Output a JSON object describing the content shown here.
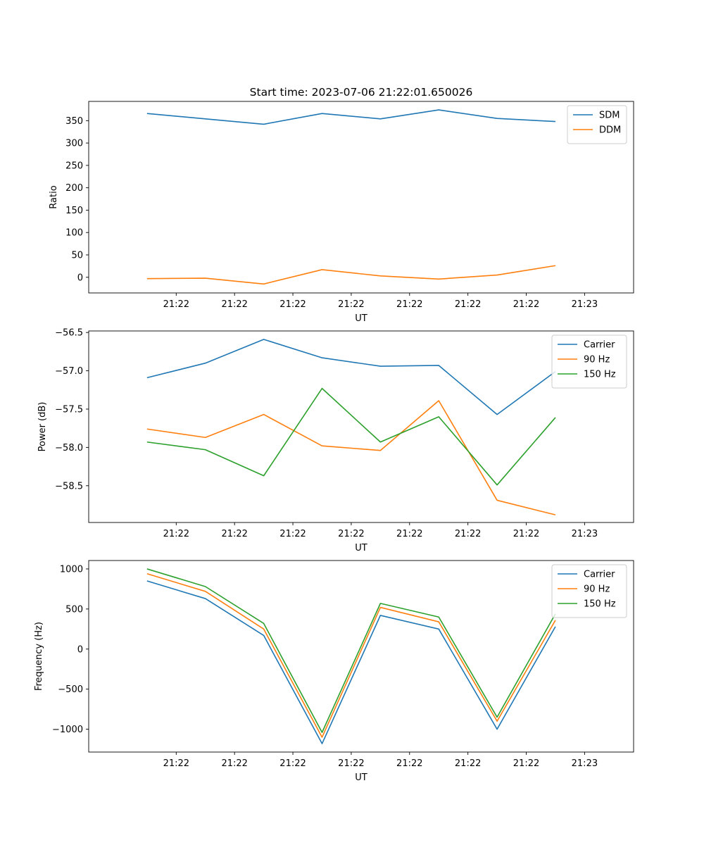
{
  "chart_data": [
    {
      "type": "line",
      "title": "Start time: 2023-07-06 21:22:01.650026",
      "xlabel": "UT",
      "ylabel": "Ratio",
      "xlim": [
        0,
        9.34
      ],
      "ylim": [
        -35,
        393
      ],
      "x": [
        1,
        2,
        3,
        4,
        5,
        6,
        7,
        8
      ],
      "x_tick_labels": [
        "21:22",
        "21:22",
        "21:22",
        "21:22",
        "21:22",
        "21:22",
        "21:22"
      ],
      "x_last_tick_label": "21:23",
      "yticks": [
        0,
        50,
        100,
        150,
        200,
        250,
        300,
        350
      ],
      "legend": "top-right",
      "series": [
        {
          "name": "SDM",
          "color": "#1f77b4",
          "values": [
            366,
            354,
            342,
            366,
            354,
            374,
            355,
            348
          ]
        },
        {
          "name": "DDM",
          "color": "#ff7f0e",
          "values": [
            -3,
            -2,
            -15,
            17,
            3,
            -4,
            5,
            26
          ]
        }
      ]
    },
    {
      "type": "line",
      "title": "",
      "xlabel": "UT",
      "ylabel": "Power (dB)",
      "xlim": [
        0,
        9.34
      ],
      "ylim": [
        -58.98,
        -56.48
      ],
      "x": [
        1,
        2,
        3,
        4,
        5,
        6,
        7,
        8
      ],
      "x_tick_labels": [
        "21:22",
        "21:22",
        "21:22",
        "21:22",
        "21:22",
        "21:22",
        "21:22"
      ],
      "x_last_tick_label": "21:23",
      "yticks": [
        -58.5,
        -58.0,
        -57.5,
        -57.0,
        -56.5
      ],
      "ytick_labels": [
        "−58.5",
        "−58.0",
        "−57.5",
        "−57.0",
        "−56.5"
      ],
      "legend": "top-right",
      "series": [
        {
          "name": "Carrier",
          "color": "#1f77b4",
          "values": [
            -57.09,
            -56.9,
            -56.59,
            -56.83,
            -56.94,
            -56.93,
            -57.57,
            -57.01
          ]
        },
        {
          "name": "90 Hz",
          "color": "#ff7f0e",
          "values": [
            -57.76,
            -57.87,
            -57.57,
            -57.98,
            -58.04,
            -57.39,
            -58.69,
            -58.88
          ]
        },
        {
          "name": "150 Hz",
          "color": "#2ca02c",
          "values": [
            -57.93,
            -58.03,
            -58.37,
            -57.23,
            -57.93,
            -57.6,
            -58.49,
            -57.61
          ]
        }
      ]
    },
    {
      "type": "line",
      "title": "",
      "xlabel": "UT",
      "ylabel": "Frequency (Hz)",
      "xlim": [
        0,
        9.34
      ],
      "ylim": [
        -1285,
        1105
      ],
      "x": [
        1,
        2,
        3,
        4,
        5,
        6,
        7,
        8
      ],
      "x_tick_labels": [
        "21:22",
        "21:22",
        "21:22",
        "21:22",
        "21:22",
        "21:22",
        "21:22"
      ],
      "x_last_tick_label": "21:23",
      "yticks": [
        -1000,
        -500,
        0,
        500,
        1000
      ],
      "ytick_labels": [
        "−1000",
        "−500",
        "0",
        "500",
        "1000"
      ],
      "legend": "top-right",
      "series": [
        {
          "name": "Carrier",
          "color": "#1f77b4",
          "values": [
            850,
            630,
            170,
            -1180,
            420,
            250,
            -1000,
            280
          ]
        },
        {
          "name": "90 Hz",
          "color": "#ff7f0e",
          "values": [
            940,
            720,
            250,
            -1100,
            520,
            340,
            -900,
            360
          ]
        },
        {
          "name": "150 Hz",
          "color": "#2ca02c",
          "values": [
            1000,
            780,
            320,
            -1040,
            570,
            400,
            -850,
            440
          ]
        }
      ]
    }
  ]
}
